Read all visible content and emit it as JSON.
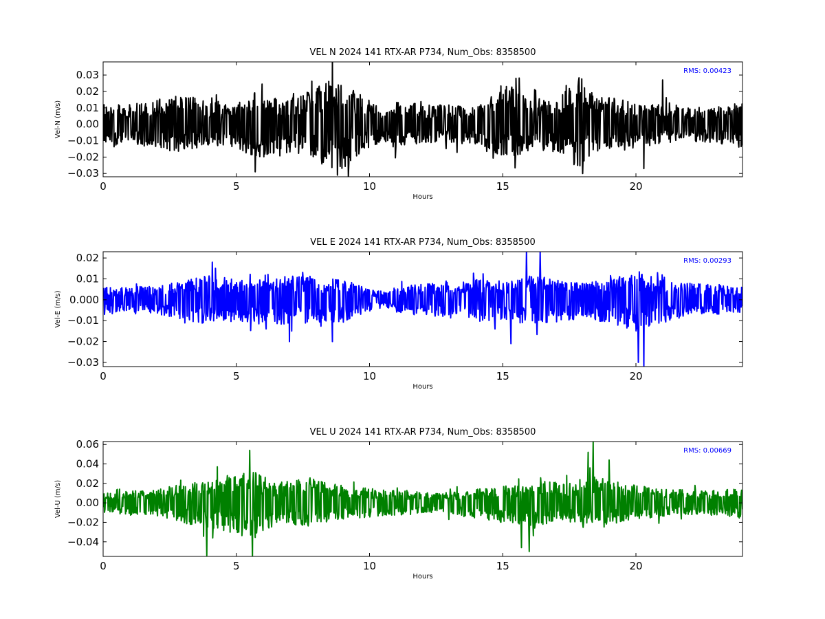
{
  "chart_data": [
    {
      "type": "line",
      "title": "VEL N 2024 141 RTX-AR  P734, Num_Obs: 8358500",
      "xlabel": "Hours",
      "ylabel": "Vel-N (m/s)",
      "xlim": [
        0,
        24
      ],
      "ylim": [
        -0.032,
        0.038
      ],
      "xticks": [
        0,
        5,
        10,
        15,
        20
      ],
      "xtick_labels": [
        "0",
        "5",
        "10",
        "15",
        "20"
      ],
      "yticks": [
        -0.03,
        -0.02,
        -0.01,
        0.0,
        0.01,
        0.02,
        0.03
      ],
      "ytick_labels": [
        "−0.03",
        "−0.02",
        "−0.01",
        "0.00",
        "0.01",
        "0.02",
        "0.03"
      ],
      "color": "#000000",
      "annotation": "RMS:  0.00423",
      "annotation_color": "#0000ff",
      "rms": 0.00423,
      "grid": false,
      "envelope": {
        "hours": [
          0,
          1,
          2,
          3,
          4,
          5,
          5.7,
          6.5,
          7.5,
          8.5,
          9.0,
          9.5,
          10.5,
          11,
          12,
          13,
          14,
          14.5,
          15.2,
          16,
          17,
          17.9,
          18.5,
          19,
          20,
          21,
          22,
          23,
          24
        ],
        "upper": [
          0.013,
          0.012,
          0.016,
          0.018,
          0.014,
          0.012,
          0.02,
          0.016,
          0.018,
          0.028,
          0.025,
          0.02,
          0.009,
          0.015,
          0.012,
          0.012,
          0.01,
          0.016,
          0.025,
          0.015,
          0.015,
          0.03,
          0.016,
          0.018,
          0.012,
          0.012,
          0.01,
          0.012,
          0.014
        ],
        "lower": [
          -0.012,
          -0.012,
          -0.016,
          -0.017,
          -0.014,
          -0.014,
          -0.022,
          -0.018,
          -0.018,
          -0.027,
          -0.028,
          -0.02,
          -0.01,
          -0.015,
          -0.011,
          -0.012,
          -0.012,
          -0.016,
          -0.022,
          -0.016,
          -0.016,
          -0.028,
          -0.016,
          -0.018,
          -0.014,
          -0.012,
          -0.01,
          -0.012,
          -0.015
        ]
      },
      "spikes": [
        [
          8.6,
          0.038
        ],
        [
          18.0,
          0.038
        ],
        [
          9.2,
          -0.032
        ],
        [
          18.0,
          -0.03
        ],
        [
          5.7,
          -0.029
        ],
        [
          8.8,
          -0.031
        ],
        [
          20.3,
          -0.027
        ],
        [
          15.5,
          0.028
        ],
        [
          21.0,
          0.027
        ]
      ]
    },
    {
      "type": "line",
      "title": "VEL E 2024 141 RTX-AR  P734, Num_Obs: 8358500",
      "xlabel": "Hours",
      "ylabel": "Vel-E (m/s)",
      "xlim": [
        0,
        24
      ],
      "ylim": [
        -0.032,
        0.023
      ],
      "xticks": [
        0,
        5,
        10,
        15,
        20
      ],
      "xtick_labels": [
        "0",
        "5",
        "10",
        "15",
        "20"
      ],
      "yticks": [
        -0.03,
        -0.02,
        -0.01,
        0.0,
        0.01,
        0.02
      ],
      "ytick_labels": [
        "−0.03",
        "−0.02",
        "−0.01",
        "0.000",
        "0.01",
        "0.02"
      ],
      "color": "#0000ff",
      "annotation": "RMS:  0.00293",
      "annotation_color": "#0000ff",
      "rms": 0.00293,
      "grid": false,
      "envelope": {
        "hours": [
          0,
          1,
          2,
          3,
          4,
          5,
          6,
          7,
          8,
          9,
          10,
          10.5,
          11,
          12,
          13,
          14,
          15,
          16,
          17,
          18,
          19,
          20,
          20.5,
          21,
          22,
          23,
          24
        ],
        "upper": [
          0.006,
          0.006,
          0.007,
          0.009,
          0.012,
          0.01,
          0.01,
          0.012,
          0.01,
          0.01,
          0.005,
          0.004,
          0.006,
          0.008,
          0.008,
          0.01,
          0.009,
          0.012,
          0.01,
          0.008,
          0.01,
          0.014,
          0.012,
          0.01,
          0.008,
          0.007,
          0.006
        ],
        "lower": [
          -0.006,
          -0.006,
          -0.007,
          -0.01,
          -0.012,
          -0.011,
          -0.011,
          -0.012,
          -0.011,
          -0.011,
          -0.005,
          -0.004,
          -0.006,
          -0.008,
          -0.008,
          -0.01,
          -0.01,
          -0.012,
          -0.011,
          -0.009,
          -0.011,
          -0.015,
          -0.013,
          -0.011,
          -0.008,
          -0.007,
          -0.006
        ]
      },
      "spikes": [
        [
          8.6,
          0.023
        ],
        [
          15.9,
          0.023
        ],
        [
          16.4,
          0.023
        ],
        [
          20.3,
          -0.032
        ],
        [
          20.1,
          -0.03
        ],
        [
          15.3,
          -0.021
        ],
        [
          4.1,
          0.018
        ],
        [
          7.0,
          -0.02
        ],
        [
          8.6,
          -0.02
        ]
      ]
    },
    {
      "type": "line",
      "title": "VEL U 2024 141 RTX-AR  P734, Num_Obs: 8358500",
      "xlabel": "Hours",
      "ylabel": "Vel-U (m/s)",
      "xlim": [
        0,
        24
      ],
      "ylim": [
        -0.055,
        0.063
      ],
      "xticks": [
        0,
        5,
        10,
        15,
        20
      ],
      "xtick_labels": [
        "0",
        "5",
        "10",
        "15",
        "20"
      ],
      "yticks": [
        -0.04,
        -0.02,
        0.0,
        0.02,
        0.04,
        0.06
      ],
      "ytick_labels": [
        "−0.04",
        "−0.02",
        "0.00",
        "0.02",
        "0.04",
        "0.06"
      ],
      "color": "#008000",
      "annotation": "RMS:  0.00669",
      "annotation_color": "#0000ff",
      "rms": 0.00669,
      "grid": false,
      "envelope": {
        "hours": [
          0,
          1,
          2,
          3,
          4,
          5,
          5.6,
          6.5,
          7.5,
          8.5,
          9.5,
          10.5,
          11.5,
          12.5,
          13.5,
          14.5,
          15.5,
          16.5,
          17.5,
          18.5,
          19.5,
          20.5,
          21.5,
          22.5,
          23.5,
          24
        ],
        "upper": [
          0.01,
          0.012,
          0.014,
          0.02,
          0.025,
          0.03,
          0.035,
          0.02,
          0.028,
          0.02,
          0.016,
          0.014,
          0.012,
          0.01,
          0.012,
          0.016,
          0.02,
          0.022,
          0.022,
          0.028,
          0.02,
          0.016,
          0.014,
          0.012,
          0.014,
          0.015
        ],
        "lower": [
          -0.01,
          -0.012,
          -0.014,
          -0.02,
          -0.028,
          -0.032,
          -0.038,
          -0.022,
          -0.026,
          -0.02,
          -0.016,
          -0.014,
          -0.012,
          -0.01,
          -0.014,
          -0.018,
          -0.024,
          -0.024,
          -0.02,
          -0.024,
          -0.02,
          -0.016,
          -0.012,
          -0.012,
          -0.014,
          -0.016
        ]
      },
      "spikes": [
        [
          18.4,
          0.063
        ],
        [
          18.2,
          0.052
        ],
        [
          5.6,
          -0.055
        ],
        [
          3.9,
          -0.054
        ],
        [
          5.5,
          0.054
        ],
        [
          16.0,
          -0.05
        ],
        [
          19.0,
          0.044
        ],
        [
          15.7,
          -0.046
        ]
      ]
    }
  ]
}
